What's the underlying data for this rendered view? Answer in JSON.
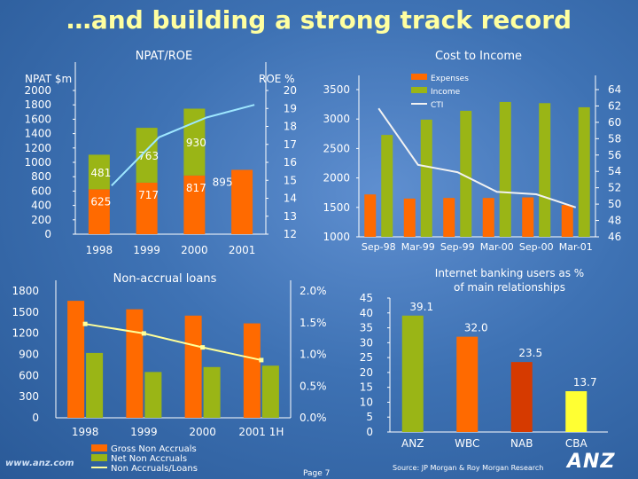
{
  "slide": {
    "title": "…and building a strong track record",
    "footer_url": "www.anz.com",
    "page_label": "Page 7",
    "source": "Source:   JP Morgan & Roy Morgan Research",
    "logo_text": "ANZ"
  },
  "colors": {
    "orange": "#ff6a00",
    "green": "#9ab516",
    "light_blue": "#9ee7ff",
    "white_line": "#f2f2f2",
    "yellow_line": "#ffff99",
    "red": "#d63a00",
    "yellow": "#ffff33"
  },
  "chart_data": [
    {
      "id": "npat",
      "type": "bar",
      "title": "NPAT/ROE",
      "ylabel": "NPAT $m",
      "y2label": "ROE %",
      "ylim": [
        0,
        2000
      ],
      "y2lim": [
        12,
        20
      ],
      "yticks": [
        "2000",
        "1800",
        "1600",
        "1400",
        "1200",
        "1000",
        "800",
        "600",
        "400",
        "200",
        "0"
      ],
      "y2ticks": [
        "20",
        "19",
        "18",
        "17",
        "16",
        "15",
        "14",
        "13",
        "12"
      ],
      "categories": [
        "1998",
        "1999",
        "2000",
        "2001"
      ],
      "series": [
        {
          "values": [
            625,
            717,
            817,
            895
          ],
          "labels": [
            "625",
            "717",
            "817",
            "895"
          ],
          "color": "#ff6a00"
        },
        {
          "values": [
            481,
            763,
            930,
            null
          ],
          "labels": [
            "481",
            "763",
            "930",
            ""
          ],
          "color": "#9ab516"
        }
      ],
      "line": {
        "values": [
          14.7,
          17.4,
          18.5,
          19.2
        ],
        "color": "#9ee7ff"
      }
    },
    {
      "id": "cti",
      "type": "bar",
      "title": "Cost to Income",
      "ylim": [
        1000,
        3500
      ],
      "y2lim": [
        46,
        64
      ],
      "yticks": [
        "3500",
        "3000",
        "2500",
        "2000",
        "1500",
        "1000"
      ],
      "y2ticks": [
        "64",
        "62",
        "60",
        "58",
        "56",
        "54",
        "52",
        "50",
        "48",
        "46"
      ],
      "categories": [
        "Sep-98",
        "Mar-99",
        "Sep-99",
        "Mar-00",
        "Sep-00",
        "Mar-01"
      ],
      "legend": [
        "Expenses",
        "Income",
        "CTI"
      ],
      "series": [
        {
          "name": "Expenses",
          "values": [
            1720,
            1650,
            1660,
            1660,
            1670,
            1540
          ],
          "color": "#ff6a00"
        },
        {
          "name": "Income",
          "values": [
            2730,
            2990,
            3140,
            3290,
            3270,
            3200
          ],
          "color": "#9ab516"
        }
      ],
      "line": {
        "name": "CTI",
        "values": [
          61.7,
          54.8,
          53.9,
          51.5,
          51.2,
          49.6
        ],
        "color": "#f2f2f2"
      }
    },
    {
      "id": "nonaccrual",
      "type": "bar",
      "title": "Non-accrual loans",
      "ylim": [
        0,
        1800
      ],
      "y2lim": [
        0,
        2.0
      ],
      "yticks": [
        "1800",
        "1500",
        "1200",
        "900",
        "600",
        "300",
        "0"
      ],
      "y2ticks": [
        "2.0%",
        "1.5%",
        "1.0%",
        "0.5%",
        "0.0%"
      ],
      "categories": [
        "1998",
        "1999",
        "2000",
        "2001 1H"
      ],
      "legend": [
        "Gross Non Accruals",
        "Net Non Accruals",
        "Non Accruals/Loans"
      ],
      "series": [
        {
          "name": "Gross Non Accruals",
          "values": [
            1660,
            1540,
            1450,
            1340
          ],
          "color": "#ff6a00"
        },
        {
          "name": "Net Non Accruals",
          "values": [
            920,
            650,
            720,
            740
          ],
          "color": "#9ab516"
        }
      ],
      "line": {
        "name": "Non Accruals/Loans",
        "values": [
          1.48,
          1.33,
          1.11,
          0.91
        ],
        "color": "#ffff99"
      }
    },
    {
      "id": "internet",
      "type": "bar",
      "title": "Internet banking users as % of main relationships",
      "ylim": [
        0,
        45
      ],
      "yticks": [
        "45",
        "40",
        "35",
        "30",
        "25",
        "20",
        "15",
        "10",
        "5",
        "0"
      ],
      "categories": [
        "ANZ",
        "WBC",
        "NAB",
        "CBA"
      ],
      "values": [
        39.1,
        32.0,
        23.5,
        13.7
      ],
      "labels": [
        "39.1",
        "32.0",
        "23.5",
        "13.7"
      ],
      "colors": [
        "#9ab516",
        "#ff6a00",
        "#d63a00",
        "#ffff33"
      ]
    }
  ]
}
